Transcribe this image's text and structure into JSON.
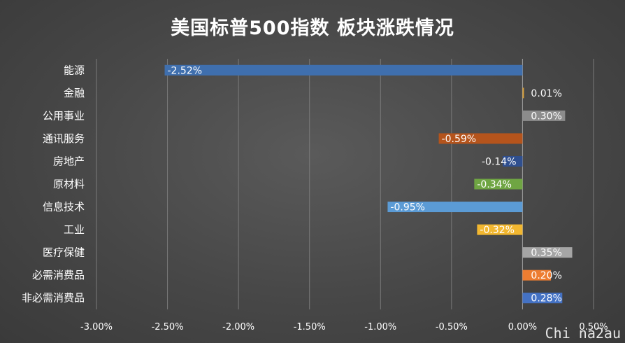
{
  "chart_data": {
    "type": "bar",
    "orientation": "horizontal",
    "title": "美国标普500指数 板块涨跌情况",
    "categories": [
      "能源",
      "金融",
      "公用事业",
      "通讯服务",
      "房地产",
      "原材料",
      "信息技术",
      "工业",
      "医疗保健",
      "必需消费品",
      "非必需消费品"
    ],
    "values": [
      -2.52,
      0.01,
      0.3,
      -0.59,
      -0.14,
      -0.34,
      -0.95,
      -0.32,
      0.35,
      0.2,
      0.28
    ],
    "value_labels": [
      "-2.52%",
      "0.01%",
      "0.30%",
      "-0.59%",
      "-0.14%",
      "-0.34%",
      "-0.95%",
      "-0.32%",
      "0.35%",
      "0.20%",
      "0.28%"
    ],
    "colors": [
      "#3f6fae",
      "#d9a03a",
      "#8c8c8c",
      "#b5541c",
      "#2f4f8f",
      "#6fa543",
      "#5b9bd5",
      "#f2b730",
      "#a5a5a5",
      "#ed7d31",
      "#4472c4"
    ],
    "xlim": [
      -3.0,
      0.5
    ],
    "xticks": [
      -3.0,
      -2.5,
      -2.0,
      -1.5,
      -1.0,
      -0.5,
      0.0,
      0.5
    ],
    "xtick_labels": [
      "-3.00%",
      "-2.50%",
      "-2.00%",
      "-1.50%",
      "-1.00%",
      "-0.50%",
      "0.00%",
      "0.50%"
    ],
    "grid": true,
    "legend": "none"
  },
  "watermark": "Chi na2au"
}
